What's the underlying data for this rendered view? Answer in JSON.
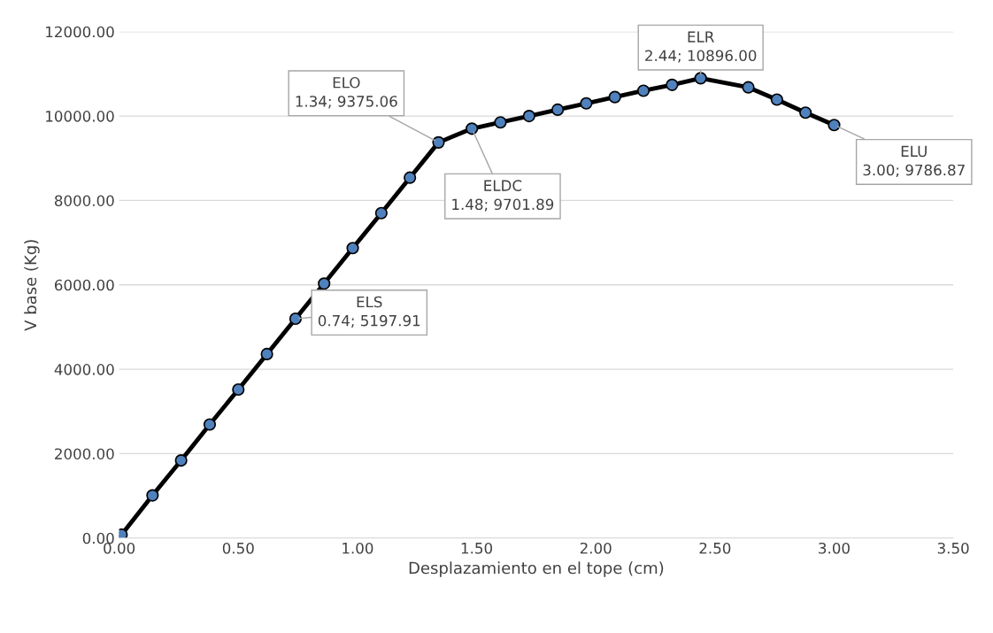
{
  "chart_data": {
    "type": "line",
    "xlabel": "Desplazamiento en el tope (cm)",
    "ylabel": "V base (Kg)",
    "series": [
      {
        "color": "#000000",
        "x": [
          0,
          0.01,
          0.14,
          0.26,
          0.38,
          0.5,
          0.62,
          0.74,
          0.86,
          0.98,
          1.1,
          1.22,
          1.34,
          1.48,
          1.6,
          1.72,
          1.84,
          1.96,
          2.08,
          2.2,
          2.32,
          2.44,
          2.64,
          2.76,
          2.88,
          3.0
        ],
        "values": [
          0,
          80,
          1010,
          1840,
          2690,
          3520,
          4360,
          5197.91,
          6030,
          6870,
          7700,
          8540,
          9375.06,
          9701.89,
          9850,
          10000,
          10150,
          10300,
          10450,
          10600,
          10740,
          10896,
          10680,
          10390,
          10080,
          9786.87
        ]
      }
    ],
    "xlim": [
      0,
      3.5
    ],
    "xticks": [
      {
        "value": 0,
        "label": "0.00"
      },
      {
        "value": 0.5,
        "label": "0.50"
      },
      {
        "value": 1,
        "label": "1.00"
      },
      {
        "value": 1.5,
        "label": "1.50"
      },
      {
        "value": 2,
        "label": "2.00"
      },
      {
        "value": 2.5,
        "label": "2.50"
      },
      {
        "value": 3,
        "label": "3.00"
      },
      {
        "value": 3.5,
        "label": "3.50"
      }
    ],
    "ylim": [
      0,
      12000
    ],
    "yticks": [
      {
        "value": 0,
        "label": "0.00"
      },
      {
        "value": 2000,
        "label": "2000.00"
      },
      {
        "value": 4000,
        "label": "4000.00"
      },
      {
        "value": 6000,
        "label": "6000.00"
      },
      {
        "value": 8000,
        "label": "8000.00"
      },
      {
        "value": 10000,
        "label": "10000.00"
      },
      {
        "value": 12000,
        "label": "12000.00"
      }
    ],
    "grid": "y",
    "marker": "circle",
    "line_style": "solid",
    "annotations": [
      {
        "text": "ELO\n1.34; 9375.06",
        "x": 1.34,
        "y": 9375.06
      },
      {
        "text": "ELDC\n1.48; 9701.89",
        "x": 1.48,
        "y": 9701.89
      },
      {
        "text": "ELR\n2.44; 10896.00",
        "x": 2.44,
        "y": 10896
      },
      {
        "text": "ELU\n3.00; 9786.87",
        "x": 3.0,
        "y": 9786.87
      },
      {
        "text": "ELS\n0.74; 5197.91",
        "x": 0.74,
        "y": 5197.91
      }
    ]
  }
}
